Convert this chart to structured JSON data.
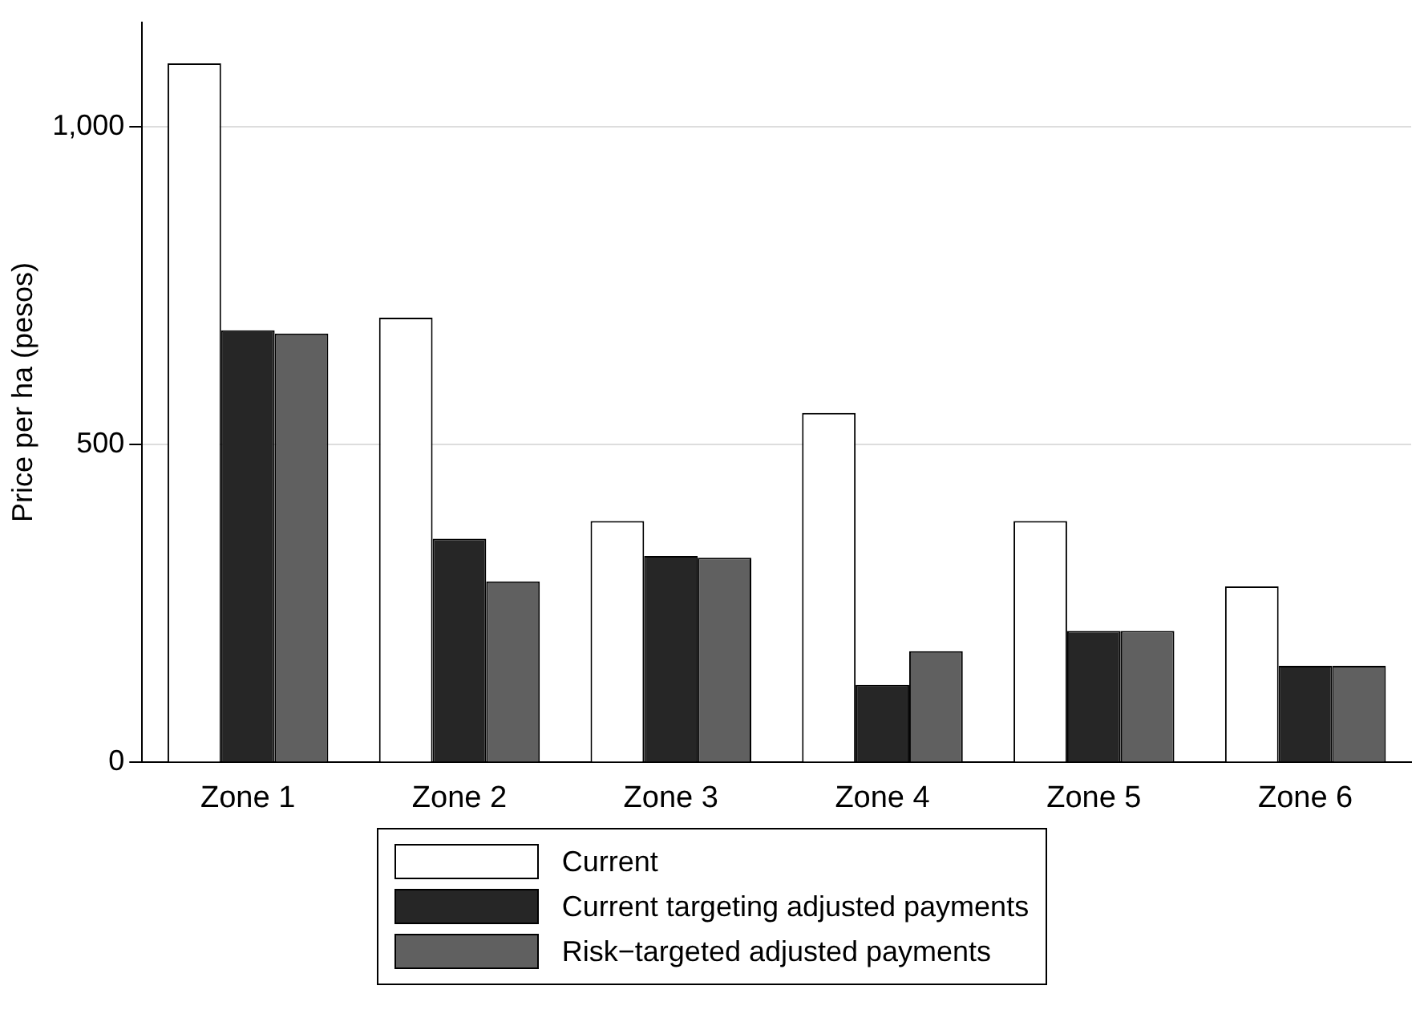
{
  "chart_data": {
    "type": "bar",
    "ylabel": "Price per ha (pesos)",
    "categories": [
      "Zone 1",
      "Zone 2",
      "Zone 3",
      "Zone 4",
      "Zone 5",
      "Zone 6"
    ],
    "series": [
      {
        "name": "Current",
        "color": "#ffffff",
        "values": [
          1100,
          700,
          380,
          550,
          380,
          277
        ]
      },
      {
        "name": "Current targeting adjusted payments",
        "color": "#262626",
        "values": [
          680,
          352,
          325,
          122,
          207,
          152
        ]
      },
      {
        "name": "Risk−targeted adjusted payments",
        "color": "#606060",
        "values": [
          675,
          285,
          322,
          175,
          207,
          152
        ]
      }
    ],
    "ylim": [
      0,
      1165
    ],
    "yticks": [
      0,
      500,
      {
        "value": 1000,
        "label": "1,000"
      }
    ],
    "grid": "y",
    "legend": "bottom"
  }
}
